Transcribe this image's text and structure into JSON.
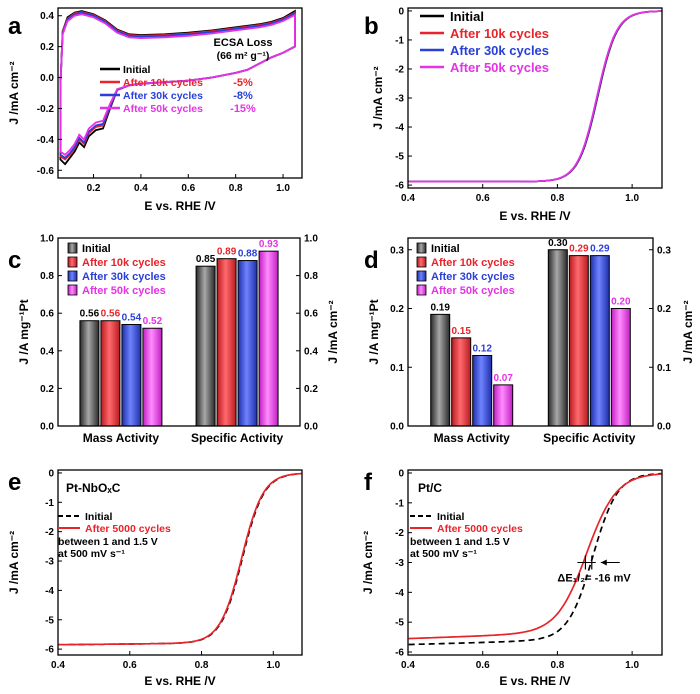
{
  "colors": {
    "Initial": "#000000",
    "After 10k cycles": "#e8242a",
    "After 30k cycles": "#2a3fd8",
    "After 50k cycles": "#e633e6",
    "After 5000 cycles": "#e8242a"
  },
  "chart_data": [
    {
      "panel": "a",
      "type": "line",
      "xlabel": "E vs. RHE /V",
      "ylabel": "J /mA cm⁻²",
      "xlim": [
        0.05,
        1.08
      ],
      "ylim": [
        -0.65,
        0.45
      ],
      "xticks": [
        "0.2",
        "0.4",
        "0.6",
        "0.8",
        "1.0"
      ],
      "yticks": [
        "-0.6",
        "-0.4",
        "-0.2",
        "0.0",
        "0.2",
        "0.4"
      ],
      "legend_heading": "ECSA Loss",
      "legend_subheading": "(66 m² g⁻¹)",
      "series": [
        {
          "name": "Initial",
          "loss": "",
          "upper": [
            [
              0.06,
              -0.05
            ],
            [
              0.07,
              0.3
            ],
            [
              0.09,
              0.39
            ],
            [
              0.12,
              0.42
            ],
            [
              0.15,
              0.43
            ],
            [
              0.2,
              0.41
            ],
            [
              0.25,
              0.37
            ],
            [
              0.3,
              0.31
            ],
            [
              0.35,
              0.28
            ],
            [
              0.4,
              0.275
            ],
            [
              0.5,
              0.28
            ],
            [
              0.6,
              0.29
            ],
            [
              0.7,
              0.305
            ],
            [
              0.8,
              0.325
            ],
            [
              0.9,
              0.345
            ],
            [
              0.95,
              0.36
            ],
            [
              1.0,
              0.385
            ],
            [
              1.05,
              0.43
            ]
          ],
          "lower": [
            [
              1.05,
              0.2
            ],
            [
              1.0,
              0.16
            ],
            [
              0.95,
              0.13
            ],
            [
              0.9,
              0.09
            ],
            [
              0.85,
              0.05
            ],
            [
              0.8,
              0.03
            ],
            [
              0.7,
              0.0
            ],
            [
              0.6,
              -0.02
            ],
            [
              0.5,
              -0.03
            ],
            [
              0.4,
              -0.04
            ],
            [
              0.35,
              -0.05
            ],
            [
              0.3,
              -0.08
            ],
            [
              0.27,
              -0.2
            ],
            [
              0.24,
              -0.33
            ],
            [
              0.21,
              -0.34
            ],
            [
              0.18,
              -0.38
            ],
            [
              0.16,
              -0.45
            ],
            [
              0.14,
              -0.42
            ],
            [
              0.12,
              -0.48
            ],
            [
              0.1,
              -0.52
            ],
            [
              0.08,
              -0.56
            ],
            [
              0.06,
              -0.53
            ]
          ]
        },
        {
          "name": "After 10k cycles",
          "loss": "-5%",
          "upper": [
            [
              0.06,
              -0.05
            ],
            [
              0.07,
              0.3
            ],
            [
              0.09,
              0.38
            ],
            [
              0.12,
              0.415
            ],
            [
              0.15,
              0.425
            ],
            [
              0.2,
              0.405
            ],
            [
              0.25,
              0.365
            ],
            [
              0.3,
              0.305
            ],
            [
              0.35,
              0.275
            ],
            [
              0.4,
              0.27
            ],
            [
              0.5,
              0.275
            ],
            [
              0.6,
              0.285
            ],
            [
              0.7,
              0.3
            ],
            [
              0.8,
              0.32
            ],
            [
              0.9,
              0.34
            ],
            [
              0.95,
              0.355
            ],
            [
              1.0,
              0.38
            ],
            [
              1.05,
              0.42
            ]
          ],
          "lower": [
            [
              1.05,
              0.2
            ],
            [
              1.0,
              0.16
            ],
            [
              0.95,
              0.13
            ],
            [
              0.9,
              0.09
            ],
            [
              0.85,
              0.05
            ],
            [
              0.8,
              0.03
            ],
            [
              0.7,
              0.0
            ],
            [
              0.6,
              -0.02
            ],
            [
              0.5,
              -0.03
            ],
            [
              0.4,
              -0.04
            ],
            [
              0.35,
              -0.05
            ],
            [
              0.3,
              -0.08
            ],
            [
              0.27,
              -0.19
            ],
            [
              0.24,
              -0.31
            ],
            [
              0.21,
              -0.32
            ],
            [
              0.18,
              -0.36
            ],
            [
              0.16,
              -0.43
            ],
            [
              0.14,
              -0.4
            ],
            [
              0.12,
              -0.46
            ],
            [
              0.1,
              -0.5
            ],
            [
              0.08,
              -0.53
            ],
            [
              0.06,
              -0.51
            ]
          ]
        },
        {
          "name": "After 30k cycles",
          "loss": "-8%",
          "upper": [
            [
              0.06,
              -0.05
            ],
            [
              0.07,
              0.29
            ],
            [
              0.09,
              0.375
            ],
            [
              0.12,
              0.41
            ],
            [
              0.15,
              0.42
            ],
            [
              0.2,
              0.4
            ],
            [
              0.25,
              0.36
            ],
            [
              0.3,
              0.3
            ],
            [
              0.35,
              0.27
            ],
            [
              0.4,
              0.265
            ],
            [
              0.5,
              0.27
            ],
            [
              0.6,
              0.28
            ],
            [
              0.7,
              0.295
            ],
            [
              0.8,
              0.315
            ],
            [
              0.9,
              0.335
            ],
            [
              0.95,
              0.35
            ],
            [
              1.0,
              0.375
            ],
            [
              1.05,
              0.415
            ]
          ],
          "lower": [
            [
              1.05,
              0.2
            ],
            [
              1.0,
              0.16
            ],
            [
              0.95,
              0.13
            ],
            [
              0.9,
              0.09
            ],
            [
              0.85,
              0.05
            ],
            [
              0.8,
              0.03
            ],
            [
              0.7,
              0.0
            ],
            [
              0.6,
              -0.02
            ],
            [
              0.5,
              -0.03
            ],
            [
              0.4,
              -0.04
            ],
            [
              0.35,
              -0.05
            ],
            [
              0.3,
              -0.08
            ],
            [
              0.27,
              -0.185
            ],
            [
              0.24,
              -0.3
            ],
            [
              0.21,
              -0.31
            ],
            [
              0.18,
              -0.35
            ],
            [
              0.16,
              -0.42
            ],
            [
              0.14,
              -0.39
            ],
            [
              0.12,
              -0.45
            ],
            [
              0.1,
              -0.49
            ],
            [
              0.08,
              -0.52
            ],
            [
              0.06,
              -0.5
            ]
          ]
        },
        {
          "name": "After 50k cycles",
          "loss": "-15%",
          "upper": [
            [
              0.06,
              -0.05
            ],
            [
              0.07,
              0.28
            ],
            [
              0.09,
              0.365
            ],
            [
              0.12,
              0.4
            ],
            [
              0.15,
              0.41
            ],
            [
              0.2,
              0.39
            ],
            [
              0.25,
              0.35
            ],
            [
              0.3,
              0.29
            ],
            [
              0.35,
              0.26
            ],
            [
              0.4,
              0.255
            ],
            [
              0.5,
              0.26
            ],
            [
              0.6,
              0.27
            ],
            [
              0.7,
              0.285
            ],
            [
              0.8,
              0.305
            ],
            [
              0.9,
              0.325
            ],
            [
              0.95,
              0.34
            ],
            [
              1.0,
              0.365
            ],
            [
              1.05,
              0.405
            ]
          ],
          "lower": [
            [
              1.05,
              0.2
            ],
            [
              1.0,
              0.16
            ],
            [
              0.95,
              0.13
            ],
            [
              0.9,
              0.09
            ],
            [
              0.85,
              0.05
            ],
            [
              0.8,
              0.03
            ],
            [
              0.7,
              0.0
            ],
            [
              0.6,
              -0.02
            ],
            [
              0.5,
              -0.03
            ],
            [
              0.4,
              -0.04
            ],
            [
              0.35,
              -0.05
            ],
            [
              0.3,
              -0.075
            ],
            [
              0.27,
              -0.17
            ],
            [
              0.24,
              -0.28
            ],
            [
              0.21,
              -0.29
            ],
            [
              0.18,
              -0.33
            ],
            [
              0.16,
              -0.4
            ],
            [
              0.14,
              -0.37
            ],
            [
              0.12,
              -0.43
            ],
            [
              0.1,
              -0.47
            ],
            [
              0.08,
              -0.5
            ],
            [
              0.06,
              -0.48
            ]
          ]
        }
      ]
    },
    {
      "panel": "b",
      "type": "line",
      "xlabel": "E vs. RHE /V",
      "ylabel": "J /mA cm⁻²",
      "xlim": [
        0.4,
        1.08
      ],
      "ylim": [
        -6.1,
        0.1
      ],
      "xticks": [
        "0.4",
        "0.6",
        "0.8",
        "1.0"
      ],
      "yticks": [
        "-6",
        "-5",
        "-4",
        "-3",
        "-2",
        "-1",
        "0"
      ],
      "series": [
        {
          "name": "Initial",
          "curve": {
            "jlim": -5.88,
            "slope": 0.0,
            "e0": 0.908,
            "w": 0.026
          }
        },
        {
          "name": "After 10k cycles",
          "curve": {
            "jlim": -5.88,
            "slope": 0.0,
            "e0": 0.907,
            "w": 0.026
          }
        },
        {
          "name": "After 30k cycles",
          "curve": {
            "jlim": -5.88,
            "slope": 0.0,
            "e0": 0.907,
            "w": 0.026
          }
        },
        {
          "name": "After 50k cycles",
          "curve": {
            "jlim": -5.88,
            "slope": 0.0,
            "e0": 0.906,
            "w": 0.026
          }
        }
      ]
    },
    {
      "panel": "c",
      "type": "bar",
      "categories": [
        "Mass Activity",
        "Specific Activity"
      ],
      "ylabel_left": "J /A mg⁻¹Pt",
      "ylabel_right": "J /mA cm⁻²",
      "ylim": [
        0,
        1.0
      ],
      "yticks": [
        "0.0",
        "0.2",
        "0.4",
        "0.6",
        "0.8",
        "1.0"
      ],
      "series": [
        {
          "name": "Initial",
          "values": [
            0.56,
            0.85
          ],
          "labels": [
            "0.56",
            "0.85"
          ]
        },
        {
          "name": "After 10k cycles",
          "values": [
            0.56,
            0.89
          ],
          "labels": [
            "0.56",
            "0.89"
          ]
        },
        {
          "name": "After 30k cycles",
          "values": [
            0.54,
            0.88
          ],
          "labels": [
            "0.54",
            "0.88"
          ]
        },
        {
          "name": "After 50k cycles",
          "values": [
            0.52,
            0.93
          ],
          "labels": [
            "0.52",
            "0.93"
          ]
        }
      ]
    },
    {
      "panel": "d",
      "type": "bar",
      "categories": [
        "Mass Activity",
        "Specific Activity"
      ],
      "ylabel_left": "J /A mg⁻¹Pt",
      "ylabel_right": "J /mA cm⁻²",
      "ylim": [
        0,
        0.32
      ],
      "yticks": [
        "0.0",
        "0.1",
        "0.2",
        "0.3"
      ],
      "series": [
        {
          "name": "Initial",
          "values": [
            0.19,
            0.3
          ],
          "labels": [
            "0.19",
            "0.30"
          ]
        },
        {
          "name": "After 10k cycles",
          "values": [
            0.15,
            0.29
          ],
          "labels": [
            "0.15",
            "0.29"
          ]
        },
        {
          "name": "After 30k cycles",
          "values": [
            0.12,
            0.29
          ],
          "labels": [
            "0.12",
            "0.29"
          ]
        },
        {
          "name": "After 50k cycles",
          "values": [
            0.07,
            0.2
          ],
          "labels": [
            "0.07",
            "0.20"
          ]
        }
      ]
    },
    {
      "panel": "e",
      "type": "line",
      "xlabel": "E vs. RHE /V",
      "ylabel": "J /mA cm⁻²",
      "xlim": [
        0.4,
        1.08
      ],
      "ylim": [
        -6.2,
        0.1
      ],
      "xticks": [
        "0.4",
        "0.6",
        "0.8",
        "1.0"
      ],
      "yticks": [
        "-6",
        "-5",
        "-4",
        "-3",
        "-2",
        "-1",
        "0"
      ],
      "catalyst": "Pt-NbOₓC",
      "note": [
        "between 1 and 1.5 V",
        "at 500 mV s⁻¹"
      ],
      "series": [
        {
          "name": "Initial",
          "dashed": true,
          "curve": {
            "jlim": -5.85,
            "slope": 0.25,
            "e0": 0.914,
            "w": 0.03
          }
        },
        {
          "name": "After 5000 cycles",
          "dashed": false,
          "curve": {
            "jlim": -5.85,
            "slope": 0.25,
            "e0": 0.912,
            "w": 0.03
          }
        }
      ]
    },
    {
      "panel": "f",
      "type": "line",
      "xlabel": "E vs. RHE /V",
      "ylabel": "J /mA cm⁻²",
      "xlim": [
        0.4,
        1.08
      ],
      "ylim": [
        -6.1,
        0.1
      ],
      "xticks": [
        "0.4",
        "0.6",
        "0.8",
        "1.0"
      ],
      "yticks": [
        "-6",
        "-5",
        "-4",
        "-3",
        "-2",
        "-1",
        "0"
      ],
      "catalyst": "Pt/C",
      "note": [
        "between 1 and 1.5 V",
        "at 500 mV s⁻¹"
      ],
      "annotation": "ΔE₁/₂= -16 mV",
      "series": [
        {
          "name": "Initial",
          "dashed": true,
          "curve": {
            "jlim": -5.75,
            "slope": 0.7,
            "e0": 0.895,
            "w": 0.033
          }
        },
        {
          "name": "After 5000 cycles",
          "dashed": false,
          "curve": {
            "jlim": -5.55,
            "slope": 0.9,
            "e0": 0.879,
            "w": 0.04
          }
        }
      ]
    }
  ]
}
